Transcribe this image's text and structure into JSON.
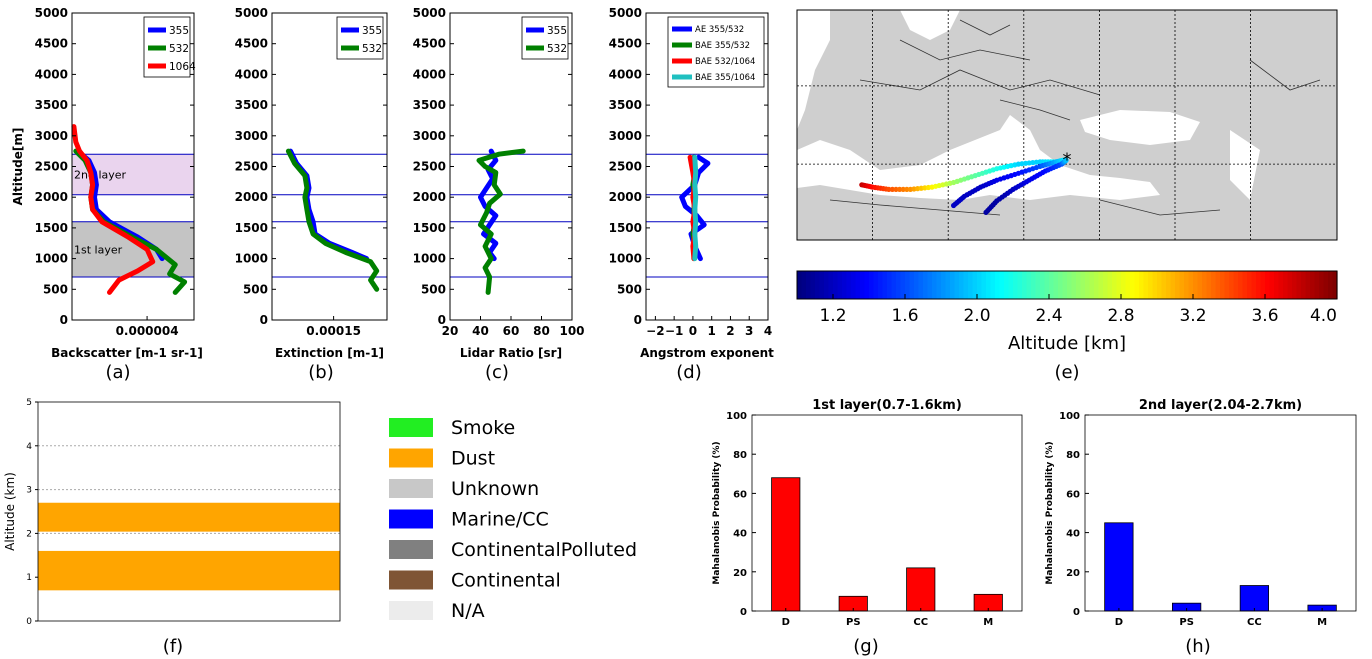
{
  "chart_data": [
    {
      "panel": "(a)",
      "type": "line",
      "xlabel": "Backscatter [m-1 sr-1]",
      "ylabel": "Altitude[m]",
      "xlim": [
        0,
        6.5e-06
      ],
      "ylim": [
        0,
        5000
      ],
      "xticks": [
        4e-06
      ],
      "xtick_labels": [
        "0.000004"
      ],
      "yticks": [
        0,
        500,
        1000,
        1500,
        2000,
        2500,
        3000,
        3500,
        4000,
        4500,
        5000
      ],
      "legend": [
        "355",
        "532",
        "1064"
      ],
      "legend_position": "top-right",
      "layer_lines": [
        700,
        1600,
        2040,
        2700
      ],
      "shaded_layers": [
        {
          "label": "1st layer",
          "y0": 700,
          "y1": 1600,
          "color": "#c4c4c4"
        },
        {
          "label": "2nd layer",
          "y0": 2040,
          "y1": 2700,
          "color": "#ead4ee"
        }
      ],
      "series": [
        {
          "name": "355",
          "color": "#0000ff",
          "points": [
            [
              3e-07,
              2750
            ],
            [
              9e-07,
              2600
            ],
            [
              1.2e-06,
              2400
            ],
            [
              1.3e-06,
              2200
            ],
            [
              1.2e-06,
              2000
            ],
            [
              1.3e-06,
              1800
            ],
            [
              2e-06,
              1600
            ],
            [
              3.5e-06,
              1350
            ],
            [
              4.5e-06,
              1150
            ],
            [
              4.8e-06,
              1000
            ]
          ]
        },
        {
          "name": "532",
          "color": "#008000",
          "points": [
            [
              2e-07,
              2750
            ],
            [
              7e-07,
              2600
            ],
            [
              1e-06,
              2400
            ],
            [
              1.1e-06,
              2200
            ],
            [
              1e-06,
              2000
            ],
            [
              1.1e-06,
              1800
            ],
            [
              1.7e-06,
              1600
            ],
            [
              3.2e-06,
              1350
            ],
            [
              4.5e-06,
              1150
            ],
            [
              5.5e-06,
              900
            ],
            [
              5.2e-06,
              750
            ],
            [
              6e-06,
              620
            ],
            [
              5.5e-06,
              450
            ]
          ]
        },
        {
          "name": "1064",
          "color": "#ff0000",
          "points": [
            [
              1e-07,
              3150
            ],
            [
              2e-07,
              2900
            ],
            [
              4e-07,
              2750
            ],
            [
              8e-07,
              2600
            ],
            [
              1e-06,
              2400
            ],
            [
              1.1e-06,
              2200
            ],
            [
              1e-06,
              2000
            ],
            [
              1.1e-06,
              1800
            ],
            [
              1.6e-06,
              1600
            ],
            [
              3e-06,
              1350
            ],
            [
              4e-06,
              1150
            ],
            [
              4.3e-06,
              950
            ],
            [
              3.5e-06,
              800
            ],
            [
              2.5e-06,
              650
            ],
            [
              2e-06,
              450
            ]
          ]
        }
      ]
    },
    {
      "panel": "(b)",
      "type": "line",
      "xlabel": "Extinction [m-1]",
      "xlim": [
        0,
        0.00028
      ],
      "ylim": [
        0,
        5000
      ],
      "xticks": [
        0.00015
      ],
      "xtick_labels": [
        "0.00015"
      ],
      "yticks": [
        0,
        500,
        1000,
        1500,
        2000,
        2500,
        3000,
        3500,
        4000,
        4500,
        5000
      ],
      "legend": [
        "355",
        "532"
      ],
      "legend_position": "top-right",
      "layer_lines": [
        700,
        1600,
        2040,
        2700
      ],
      "series": [
        {
          "name": "355",
          "color": "#0000ff",
          "points": [
            [
              4.5e-05,
              2750
            ],
            [
              6e-05,
              2550
            ],
            [
              8.5e-05,
              2350
            ],
            [
              9e-05,
              2150
            ],
            [
              8.5e-05,
              2000
            ],
            [
              9e-05,
              1800
            ],
            [
              0.0001,
              1600
            ],
            [
              0.000105,
              1400
            ],
            [
              0.00014,
              1250
            ],
            [
              0.000195,
              1100
            ],
            [
              0.00023,
              1000
            ]
          ]
        },
        {
          "name": "532",
          "color": "#008000",
          "points": [
            [
              4e-05,
              2750
            ],
            [
              5.5e-05,
              2550
            ],
            [
              8e-05,
              2350
            ],
            [
              8.5e-05,
              2150
            ],
            [
              8e-05,
              2000
            ],
            [
              8.5e-05,
              1800
            ],
            [
              9e-05,
              1600
            ],
            [
              0.0001,
              1400
            ],
            [
              0.00013,
              1250
            ],
            [
              0.00018,
              1100
            ],
            [
              0.00024,
              950
            ],
            [
              0.000255,
              800
            ],
            [
              0.00024,
              650
            ],
            [
              0.000255,
              500
            ]
          ]
        }
      ]
    },
    {
      "panel": "(c)",
      "type": "line",
      "xlabel": "Lidar Ratio [sr]",
      "xlim": [
        20,
        100
      ],
      "ylim": [
        0,
        5000
      ],
      "xticks": [
        20,
        40,
        60,
        80,
        100
      ],
      "xtick_labels": [
        "20",
        "40",
        "60",
        "80",
        "100"
      ],
      "yticks": [
        0,
        500,
        1000,
        1500,
        2000,
        2500,
        3000,
        3500,
        4000,
        4500,
        5000
      ],
      "legend": [
        "355",
        "532"
      ],
      "legend_position": "top-right",
      "layer_lines": [
        700,
        1600,
        2040,
        2700
      ],
      "series": [
        {
          "name": "355",
          "color": "#0000ff",
          "points": [
            [
              47,
              2750
            ],
            [
              50,
              2600
            ],
            [
              45,
              2450
            ],
            [
              48,
              2300
            ],
            [
              44,
              2150
            ],
            [
              40,
              2000
            ],
            [
              43,
              1850
            ],
            [
              50,
              1700
            ],
            [
              46,
              1550
            ],
            [
              42,
              1400
            ],
            [
              50,
              1250
            ],
            [
              46,
              1100
            ],
            [
              49,
              1000
            ]
          ]
        },
        {
          "name": "532",
          "color": "#008000",
          "points": [
            [
              68,
              2750
            ],
            [
              52,
              2700
            ],
            [
              39,
              2600
            ],
            [
              43,
              2500
            ],
            [
              50,
              2400
            ],
            [
              49,
              2200
            ],
            [
              53,
              2050
            ],
            [
              46,
              1900
            ],
            [
              44,
              1750
            ],
            [
              40,
              1550
            ],
            [
              47,
              1400
            ],
            [
              43,
              1200
            ],
            [
              47,
              1000
            ],
            [
              43,
              850
            ],
            [
              46,
              700
            ],
            [
              45,
              450
            ]
          ]
        }
      ]
    },
    {
      "panel": "(d)",
      "type": "line",
      "xlabel": "Angstrom exponent",
      "xlim": [
        -2.5,
        4
      ],
      "ylim": [
        0,
        5000
      ],
      "xticks": [
        -2,
        -1,
        0,
        1,
        2,
        3,
        4
      ],
      "xtick_labels": [
        "−2",
        "−1",
        "0",
        "1",
        "2",
        "3",
        "4"
      ],
      "yticks": [
        0,
        500,
        1000,
        1500,
        2000,
        2500,
        3000,
        3500,
        4000,
        4500,
        5000
      ],
      "legend": [
        "AE 355/532",
        "BAE 355/532",
        "BAE 532/1064",
        "BAE 355/1064"
      ],
      "legend_position": "top-right",
      "layer_lines": [
        700,
        1600,
        2040,
        2700
      ],
      "series": [
        {
          "name": "AE 355/532",
          "color": "#0000ff",
          "points": [
            [
              0.3,
              2650
            ],
            [
              0.8,
              2550
            ],
            [
              0.3,
              2400
            ],
            [
              0.1,
              2200
            ],
            [
              -0.6,
              2000
            ],
            [
              -0.4,
              1850
            ],
            [
              0.2,
              1700
            ],
            [
              0.6,
              1550
            ],
            [
              -0.1,
              1400
            ],
            [
              0.1,
              1200
            ],
            [
              0.4,
              1000
            ]
          ]
        },
        {
          "name": "BAE 355/532",
          "color": "#008000",
          "points": [
            [
              0.05,
              2650
            ],
            [
              0.1,
              2400
            ],
            [
              0.0,
              2200
            ],
            [
              0.1,
              2000
            ],
            [
              0.05,
              1800
            ],
            [
              0.1,
              1600
            ],
            [
              0.0,
              1400
            ],
            [
              0.1,
              1200
            ],
            [
              0.05,
              1000
            ]
          ]
        },
        {
          "name": "BAE 532/1064",
          "color": "#ff0000",
          "points": [
            [
              -0.15,
              2650
            ],
            [
              0.0,
              2400
            ],
            [
              0.1,
              2200
            ],
            [
              0.0,
              2000
            ],
            [
              0.1,
              1800
            ],
            [
              0.0,
              1600
            ],
            [
              0.1,
              1400
            ],
            [
              0.0,
              1200
            ],
            [
              0.05,
              1000
            ]
          ]
        },
        {
          "name": "BAE 355/1064",
          "color": "#20c0c0",
          "points": [
            [
              0.1,
              2650
            ],
            [
              0.15,
              2400
            ],
            [
              0.1,
              2200
            ],
            [
              0.15,
              2000
            ],
            [
              0.1,
              1800
            ],
            [
              0.15,
              1600
            ],
            [
              0.1,
              1400
            ],
            [
              0.15,
              1200
            ],
            [
              0.1,
              1000
            ]
          ]
        }
      ]
    },
    {
      "panel": "(f)",
      "type": "bar",
      "ylabel": "Altitude (km)",
      "ylim": [
        0,
        5
      ],
      "yticks": [
        0,
        1,
        2,
        3,
        4,
        5
      ],
      "layers": [
        {
          "type": "Dust",
          "y0": 0.7,
          "y1": 1.6,
          "color": "#ffa500"
        },
        {
          "type": "Dust",
          "y0": 2.04,
          "y1": 2.7,
          "color": "#ffa500"
        }
      ],
      "legend": [
        {
          "label": "Smoke",
          "color": "#22ee22"
        },
        {
          "label": "Dust",
          "color": "#ffa500"
        },
        {
          "label": "Unknown",
          "color": "#c8c8c8"
        },
        {
          "label": "Marine/CC",
          "color": "#0000ff"
        },
        {
          "label": "ContinentalPolluted",
          "color": "#808080"
        },
        {
          "label": "Continental",
          "color": "#7f5535"
        },
        {
          "label": "N/A",
          "color": "#ececec"
        }
      ]
    },
    {
      "panel": "(g)",
      "type": "bar",
      "title": "1st layer(0.7-1.6km)",
      "ylabel": "Mahalanobis Probability (%)",
      "ylim": [
        0,
        100
      ],
      "yticks": [
        0,
        20,
        40,
        60,
        80,
        100
      ],
      "categories": [
        "D",
        "PS",
        "CC",
        "M"
      ],
      "values": [
        68,
        7.5,
        22,
        8.5
      ],
      "color": "#ff0000"
    },
    {
      "panel": "(h)",
      "type": "bar",
      "title": "2nd layer(2.04-2.7km)",
      "ylabel": "Mahalanobis Probability (%)",
      "ylim": [
        0,
        100
      ],
      "yticks": [
        0,
        20,
        40,
        60,
        80,
        100
      ],
      "categories": [
        "D",
        "PS",
        "CC",
        "M"
      ],
      "values": [
        45,
        4,
        13,
        3
      ],
      "color": "#0000ff"
    }
  ],
  "map": {
    "panel": "(e)",
    "colorbar_label": "Altitude [km]",
    "colorbar_range": [
      1.0,
      4.0
    ],
    "colorbar_ticks": [
      1.2,
      1.6,
      2.0,
      2.4,
      2.8,
      3.2,
      3.6,
      4.0
    ],
    "colorbar_tick_labels": [
      "1.2",
      "1.6",
      "2.0",
      "2.4",
      "2.8",
      "3.2",
      "3.6",
      "4.0"
    ],
    "station_marker": "*",
    "trajectories": [
      {
        "points": [
          [
            0.12,
            0.76,
            3.8
          ],
          [
            0.14,
            0.77,
            3.6
          ],
          [
            0.17,
            0.78,
            3.4
          ],
          [
            0.21,
            0.78,
            3.2
          ],
          [
            0.25,
            0.77,
            2.9
          ],
          [
            0.29,
            0.75,
            2.6
          ],
          [
            0.33,
            0.72,
            2.4
          ],
          [
            0.37,
            0.69,
            2.2
          ],
          [
            0.41,
            0.67,
            2.0
          ],
          [
            0.45,
            0.66,
            2.0
          ],
          [
            0.48,
            0.66,
            2.1
          ],
          [
            0.5,
            0.65,
            2.2
          ]
        ]
      },
      {
        "points": [
          [
            0.29,
            0.85,
            1.2
          ],
          [
            0.31,
            0.81,
            1.2
          ],
          [
            0.34,
            0.77,
            1.2
          ],
          [
            0.37,
            0.74,
            1.3
          ],
          [
            0.41,
            0.71,
            1.4
          ],
          [
            0.45,
            0.68,
            1.6
          ],
          [
            0.48,
            0.66,
            1.9
          ],
          [
            0.5,
            0.65,
            2.1
          ]
        ]
      },
      {
        "points": [
          [
            0.35,
            0.88,
            1.1
          ],
          [
            0.37,
            0.83,
            1.1
          ],
          [
            0.4,
            0.78,
            1.2
          ],
          [
            0.43,
            0.74,
            1.3
          ],
          [
            0.46,
            0.7,
            1.4
          ],
          [
            0.49,
            0.67,
            1.6
          ],
          [
            0.5,
            0.65,
            2.0
          ]
        ]
      }
    ]
  },
  "panel_labels": [
    "(a)",
    "(b)",
    "(c)",
    "(d)",
    "(e)",
    "(f)",
    "(g)",
    "(h)"
  ]
}
